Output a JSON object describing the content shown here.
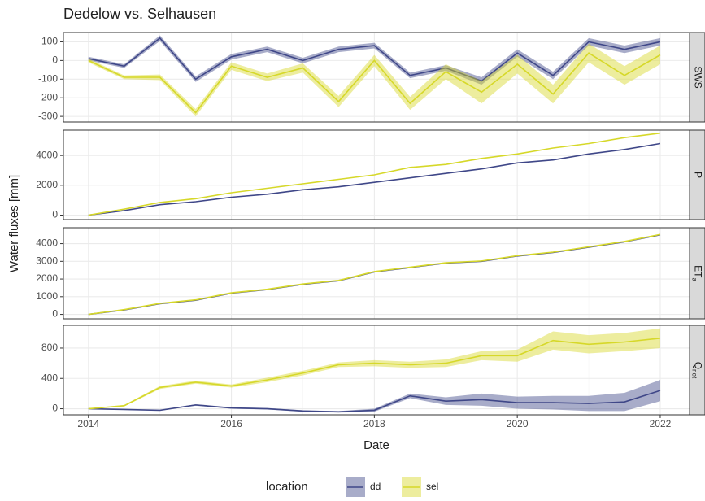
{
  "chart_data": {
    "type": "line",
    "title": "Dedelow vs. Selhausen",
    "x_label": "Date",
    "y_label": "Water fluxes [mm]",
    "legend_title": "location",
    "x": [
      2014,
      2014.5,
      2015,
      2015.5,
      2016,
      2016.5,
      2017,
      2017.5,
      2018,
      2018.5,
      2019,
      2019.5,
      2020,
      2020.5,
      2021,
      2021.5,
      2022
    ],
    "xlim": [
      2013.65,
      2022.41
    ],
    "xticks": [
      2014,
      2016,
      2018,
      2020,
      2022
    ],
    "grid": true,
    "series": [
      {
        "name": "dd",
        "color": "#3f4788"
      },
      {
        "name": "sel",
        "color": "#d6d829"
      }
    ],
    "panels": [
      {
        "strip": "SWS",
        "ylim": [
          -330,
          150
        ],
        "yticks": [
          -300,
          -200,
          -100,
          0,
          100
        ],
        "series": [
          {
            "values": [
              10,
              -30,
              120,
              -100,
              20,
              60,
              0,
              60,
              80,
              -80,
              -40,
              -110,
              40,
              -80,
              100,
              60,
              100
            ],
            "lower": [
              0,
              -40,
              105,
              -115,
              5,
              45,
              -15,
              45,
              65,
              -95,
              -55,
              -130,
              20,
              -100,
              80,
              40,
              80
            ],
            "upper": [
              20,
              -20,
              135,
              -85,
              35,
              75,
              15,
              75,
              95,
              -65,
              -25,
              -90,
              60,
              -60,
              120,
              80,
              120
            ]
          },
          {
            "values": [
              0,
              -90,
              -90,
              -280,
              -30,
              -90,
              -40,
              -220,
              0,
              -230,
              -60,
              -170,
              -20,
              -180,
              40,
              -80,
              30
            ],
            "lower": [
              -10,
              -100,
              -105,
              -300,
              -50,
              -110,
              -65,
              -250,
              -30,
              -265,
              -100,
              -230,
              -70,
              -230,
              -10,
              -130,
              -20
            ],
            "upper": [
              10,
              -80,
              -75,
              -260,
              -10,
              -70,
              -15,
              -190,
              30,
              -195,
              -20,
              -110,
              30,
              -130,
              90,
              -30,
              80
            ]
          }
        ]
      },
      {
        "strip": "P",
        "ylim": [
          -300,
          5700
        ],
        "yticks": [
          0,
          2000,
          4000
        ],
        "series": [
          {
            "values": [
              0,
              300,
              700,
              900,
              1200,
              1400,
              1700,
              1900,
              2200,
              2500,
              2800,
              3100,
              3500,
              3700,
              4100,
              4400,
              4800
            ]
          },
          {
            "values": [
              0,
              400,
              850,
              1100,
              1500,
              1800,
              2100,
              2400,
              2700,
              3200,
              3400,
              3800,
              4100,
              4500,
              4800,
              5200,
              5500
            ]
          }
        ]
      },
      {
        "strip": "ET",
        "strip_sub": "a",
        "ylim": [
          -250,
          4900
        ],
        "yticks": [
          0,
          1000,
          2000,
          3000,
          4000
        ],
        "series": [
          {
            "values": [
              0,
              250,
              600,
              800,
              1200,
              1400,
              1700,
              1900,
              2400,
              2650,
              2900,
              3000,
              3300,
              3500,
              3800,
              4100,
              4500
            ]
          },
          {
            "values": [
              0,
              270,
              620,
              820,
              1220,
              1420,
              1720,
              1920,
              2420,
              2670,
              2920,
              3020,
              3320,
              3520,
              3820,
              4120,
              4520
            ]
          }
        ]
      },
      {
        "strip": "Q",
        "strip_sub": "net",
        "ylim": [
          -80,
          1100
        ],
        "yticks": [
          0,
          400,
          800
        ],
        "series": [
          {
            "values": [
              0,
              -10,
              -20,
              50,
              10,
              0,
              -30,
              -40,
              -20,
              170,
              100,
              120,
              80,
              80,
              70,
              90,
              240
            ],
            "lower": [
              -5,
              -15,
              -25,
              40,
              0,
              -10,
              -40,
              -50,
              -40,
              140,
              50,
              40,
              0,
              -10,
              -30,
              -30,
              100
            ],
            "upper": [
              5,
              -5,
              -15,
              60,
              20,
              10,
              -20,
              -30,
              0,
              200,
              150,
              200,
              160,
              170,
              170,
              210,
              380
            ]
          },
          {
            "values": [
              0,
              40,
              280,
              350,
              300,
              380,
              470,
              580,
              600,
              580,
              600,
              700,
              700,
              900,
              850,
              880,
              930
            ],
            "lower": [
              -5,
              30,
              260,
              330,
              280,
              350,
              440,
              550,
              560,
              540,
              550,
              640,
              620,
              780,
              730,
              760,
              800
            ],
            "upper": [
              5,
              50,
              300,
              370,
              320,
              410,
              500,
              610,
              640,
              620,
              650,
              760,
              780,
              1020,
              970,
              1000,
              1060
            ]
          }
        ]
      }
    ]
  }
}
